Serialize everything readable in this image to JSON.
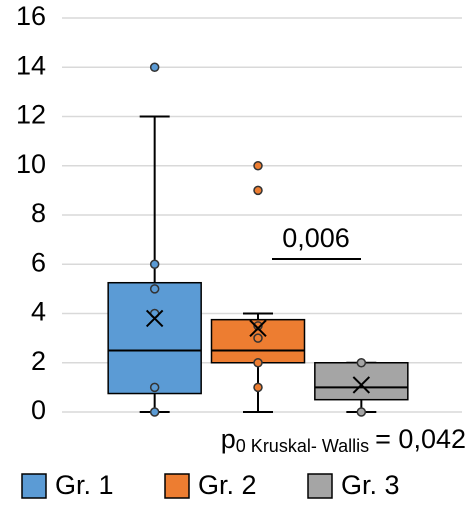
{
  "chart_data": {
    "type": "box",
    "series": [
      {
        "name": "Gr. 1",
        "color": "#5b9bd5",
        "min": 0,
        "q1": 0.75,
        "median": 2.5,
        "q3": 5.25,
        "max": 12,
        "mean": 3.8,
        "points": [
          14,
          6,
          5,
          4,
          1,
          0
        ]
      },
      {
        "name": "Gr. 2",
        "color": "#ed7d31",
        "min": 0,
        "q1": 2,
        "median": 2.5,
        "q3": 3.75,
        "max": 4,
        "mean": 3.4,
        "points": [
          10,
          9,
          3.5,
          3,
          2,
          1
        ]
      },
      {
        "name": "Gr. 3",
        "color": "#a5a5a5",
        "min": 0,
        "q1": 0.5,
        "median": 1,
        "q3": 2,
        "max": 2,
        "mean": 1.1,
        "points": [
          2,
          0
        ]
      }
    ],
    "ylim": [
      0,
      16
    ],
    "yticks": [
      0,
      2,
      4,
      6,
      8,
      10,
      12,
      14,
      16
    ],
    "grid": true,
    "legend": "bottom",
    "annotations": {
      "comparison": "0,006",
      "test_symbol": "p",
      "test_name": "0 Kruskal- Wallis",
      "test_value": "= 0,042"
    }
  }
}
